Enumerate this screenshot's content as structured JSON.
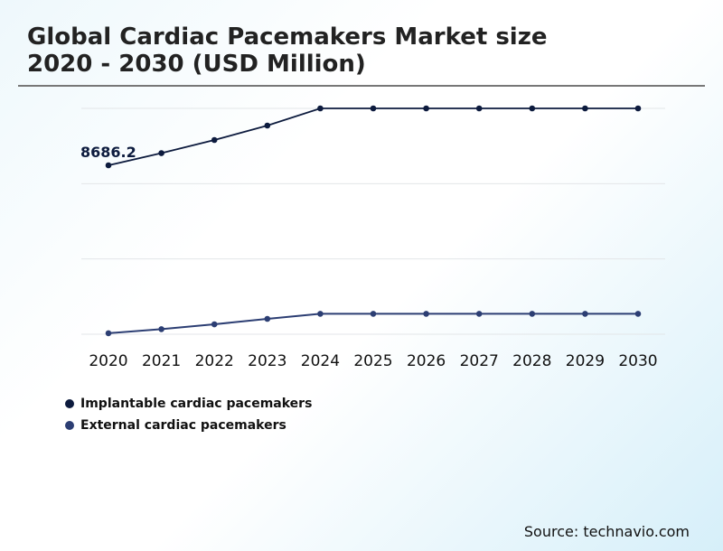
{
  "title_line1": "Global Cardiac Pacemakers Market size",
  "title_line2": "2020 - 2030 (USD Million)",
  "source": "Source: technavio.com",
  "chart_data": {
    "type": "line",
    "categories": [
      "2020",
      "2021",
      "2022",
      "2023",
      "2024",
      "2025",
      "2026",
      "2027",
      "2028",
      "2029",
      "2030"
    ],
    "series": [
      {
        "name": "Implantable cardiac pacemakers",
        "color": "#0d1b3e",
        "values": [
          8686.2,
          9313,
          9987,
          10730,
          11613,
          11613,
          11613,
          11613,
          11613,
          11613,
          11613
        ]
      },
      {
        "name": "External cardiac pacemakers",
        "color": "#2c3e73",
        "values": [
          50,
          260,
          510,
          790,
          1050,
          1050,
          1050,
          1050,
          1050,
          1050,
          1050
        ]
      }
    ],
    "annotations": [
      {
        "series": 0,
        "category": "2020",
        "label": "8686.2"
      }
    ],
    "ylim": [
      0,
      11613
    ],
    "grid": true,
    "y_tick_labels_shown": false,
    "legend_placement": "bottom-left"
  }
}
